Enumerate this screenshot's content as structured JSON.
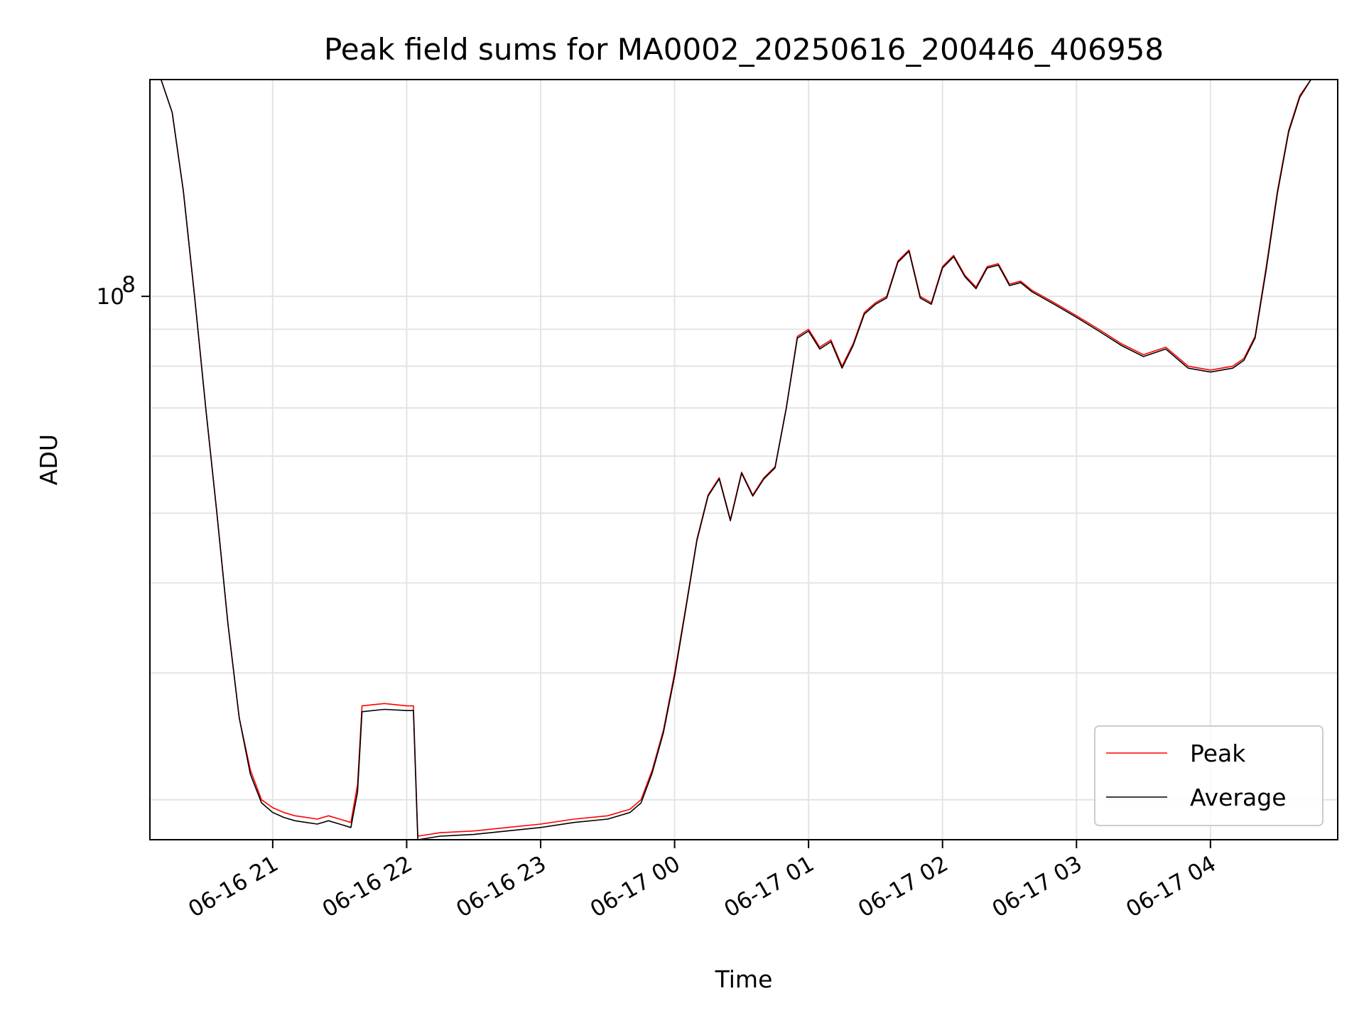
{
  "chart_data": {
    "type": "line",
    "title": "Peak field sums for MA0002_20250616_200446_406958",
    "xlabel": "Time",
    "ylabel": "ADU",
    "y_scale": "log",
    "ylim": [
      17600000.0,
      200000000.0
    ],
    "xlim": [
      "2025-06-16 20:05",
      "2025-06-17 04:57"
    ],
    "grid": true,
    "legend_position": "lower-right",
    "x_ticks": [
      "06-16 21",
      "06-16 22",
      "06-16 23",
      "06-17 00",
      "06-17 01",
      "06-17 02",
      "06-17 03",
      "06-17 04"
    ],
    "y_ticks": [
      {
        "label": "10",
        "exponent": "8",
        "value": 100000000.0
      }
    ],
    "series": [
      {
        "name": "Peak",
        "color": "#ff0000",
        "x": [
          "2025-06-16 20:05",
          "2025-06-16 20:10",
          "2025-06-16 20:15",
          "2025-06-16 20:20",
          "2025-06-16 20:25",
          "2025-06-16 20:30",
          "2025-06-16 20:35",
          "2025-06-16 20:40",
          "2025-06-16 20:45",
          "2025-06-16 20:50",
          "2025-06-16 20:55",
          "2025-06-16 21:00",
          "2025-06-16 21:05",
          "2025-06-16 21:10",
          "2025-06-16 21:15",
          "2025-06-16 21:20",
          "2025-06-16 21:25",
          "2025-06-16 21:30",
          "2025-06-16 21:35",
          "2025-06-16 21:38",
          "2025-06-16 21:40",
          "2025-06-16 21:50",
          "2025-06-16 22:00",
          "2025-06-16 22:03",
          "2025-06-16 22:05",
          "2025-06-16 22:15",
          "2025-06-16 22:30",
          "2025-06-16 22:45",
          "2025-06-16 23:00",
          "2025-06-16 23:15",
          "2025-06-16 23:30",
          "2025-06-16 23:40",
          "2025-06-16 23:45",
          "2025-06-16 23:50",
          "2025-06-16 23:55",
          "2025-06-17 00:00",
          "2025-06-17 00:05",
          "2025-06-17 00:10",
          "2025-06-17 00:15",
          "2025-06-17 00:20",
          "2025-06-17 00:25",
          "2025-06-17 00:30",
          "2025-06-17 00:35",
          "2025-06-17 00:40",
          "2025-06-17 00:45",
          "2025-06-17 00:50",
          "2025-06-17 00:55",
          "2025-06-17 01:00",
          "2025-06-17 01:05",
          "2025-06-17 01:10",
          "2025-06-17 01:15",
          "2025-06-17 01:20",
          "2025-06-17 01:25",
          "2025-06-17 01:30",
          "2025-06-17 01:35",
          "2025-06-17 01:40",
          "2025-06-17 01:45",
          "2025-06-17 01:50",
          "2025-06-17 01:55",
          "2025-06-17 02:00",
          "2025-06-17 02:05",
          "2025-06-17 02:10",
          "2025-06-17 02:15",
          "2025-06-17 02:20",
          "2025-06-17 02:25",
          "2025-06-17 02:30",
          "2025-06-17 02:35",
          "2025-06-17 02:40",
          "2025-06-17 02:45",
          "2025-06-17 02:50",
          "2025-06-17 03:00",
          "2025-06-17 03:10",
          "2025-06-17 03:20",
          "2025-06-17 03:30",
          "2025-06-17 03:40",
          "2025-06-17 03:50",
          "2025-06-17 04:00",
          "2025-06-17 04:10",
          "2025-06-17 04:15",
          "2025-06-17 04:20",
          "2025-06-17 04:25",
          "2025-06-17 04:30",
          "2025-06-17 04:35",
          "2025-06-17 04:40",
          "2025-06-17 04:45",
          "2025-06-17 04:50",
          "2025-06-17 04:57"
        ],
        "values": [
          200000000.0,
          200000000.0,
          180000000.0,
          140000000.0,
          100000000.0,
          70000000.0,
          50000000.0,
          35000000.0,
          26000000.0,
          22000000.0,
          20000000.0,
          19500000.0,
          19200000.0,
          19000000.0,
          18900000.0,
          18800000.0,
          19000000.0,
          18800000.0,
          18600000.0,
          21000000.0,
          27000000.0,
          27200000.0,
          27000000.0,
          27000000.0,
          17800000.0,
          18000000.0,
          18100000.0,
          18300000.0,
          18500000.0,
          18800000.0,
          19000000.0,
          19400000.0,
          20000000.0,
          22000000.0,
          25000000.0,
          30000000.0,
          37000000.0,
          46000000.0,
          53000000.0,
          56000000.0,
          49000000.0,
          57000000.0,
          53000000.0,
          56000000.0,
          58000000.0,
          70000000.0,
          88000000.0,
          90000000.0,
          85000000.0,
          87000000.0,
          80000000.0,
          86000000.0,
          95000000.0,
          98000000.0,
          100000000.0,
          112000000.0,
          116000000.0,
          100000000.0,
          98000000.0,
          110000000.0,
          114000000.0,
          107000000.0,
          103000000.0,
          110000000.0,
          111000000.0,
          104000000.0,
          105000000.0,
          102000000.0,
          100000000.0,
          98000000.0,
          94000000.0,
          90000000.0,
          86000000.0,
          83000000.0,
          85000000.0,
          80000000.0,
          79000000.0,
          80000000.0,
          82000000.0,
          88000000.0,
          110000000.0,
          140000000.0,
          170000000.0,
          190000000.0,
          200000000.0,
          200000000.0,
          200000000.0
        ]
      },
      {
        "name": "Average",
        "color": "#000000",
        "x": [
          "2025-06-16 20:05",
          "2025-06-16 20:10",
          "2025-06-16 20:15",
          "2025-06-16 20:20",
          "2025-06-16 20:25",
          "2025-06-16 20:30",
          "2025-06-16 20:35",
          "2025-06-16 20:40",
          "2025-06-16 20:45",
          "2025-06-16 20:50",
          "2025-06-16 20:55",
          "2025-06-16 21:00",
          "2025-06-16 21:05",
          "2025-06-16 21:10",
          "2025-06-16 21:15",
          "2025-06-16 21:20",
          "2025-06-16 21:25",
          "2025-06-16 21:30",
          "2025-06-16 21:35",
          "2025-06-16 21:38",
          "2025-06-16 21:40",
          "2025-06-16 21:50",
          "2025-06-16 22:00",
          "2025-06-16 22:03",
          "2025-06-16 22:05",
          "2025-06-16 22:15",
          "2025-06-16 22:30",
          "2025-06-16 22:45",
          "2025-06-16 23:00",
          "2025-06-16 23:15",
          "2025-06-16 23:30",
          "2025-06-16 23:40",
          "2025-06-16 23:45",
          "2025-06-16 23:50",
          "2025-06-16 23:55",
          "2025-06-17 00:00",
          "2025-06-17 00:05",
          "2025-06-17 00:10",
          "2025-06-17 00:15",
          "2025-06-17 00:20",
          "2025-06-17 00:25",
          "2025-06-17 00:30",
          "2025-06-17 00:35",
          "2025-06-17 00:40",
          "2025-06-17 00:45",
          "2025-06-17 00:50",
          "2025-06-17 00:55",
          "2025-06-17 01:00",
          "2025-06-17 01:05",
          "2025-06-17 01:10",
          "2025-06-17 01:15",
          "2025-06-17 01:20",
          "2025-06-17 01:25",
          "2025-06-17 01:30",
          "2025-06-17 01:35",
          "2025-06-17 01:40",
          "2025-06-17 01:45",
          "2025-06-17 01:50",
          "2025-06-17 01:55",
          "2025-06-17 02:00",
          "2025-06-17 02:05",
          "2025-06-17 02:10",
          "2025-06-17 02:15",
          "2025-06-17 02:20",
          "2025-06-17 02:25",
          "2025-06-17 02:30",
          "2025-06-17 02:35",
          "2025-06-17 02:40",
          "2025-06-17 02:45",
          "2025-06-17 02:50",
          "2025-06-17 03:00",
          "2025-06-17 03:10",
          "2025-06-17 03:20",
          "2025-06-17 03:30",
          "2025-06-17 03:40",
          "2025-06-17 03:50",
          "2025-06-17 04:00",
          "2025-06-17 04:10",
          "2025-06-17 04:15",
          "2025-06-17 04:20",
          "2025-06-17 04:25",
          "2025-06-17 04:30",
          "2025-06-17 04:35",
          "2025-06-17 04:40",
          "2025-06-17 04:45",
          "2025-06-17 04:50",
          "2025-06-17 04:57"
        ],
        "values": [
          200000000.0,
          200000000.0,
          180000000.0,
          140000000.0,
          100000000.0,
          70000000.0,
          50000000.0,
          35000000.0,
          26000000.0,
          21700000.0,
          19800000.0,
          19200000.0,
          18900000.0,
          18700000.0,
          18600000.0,
          18500000.0,
          18700000.0,
          18500000.0,
          18300000.0,
          20500000.0,
          26500000.0,
          26700000.0,
          26600000.0,
          26600000.0,
          17600000.0,
          17800000.0,
          17900000.0,
          18100000.0,
          18300000.0,
          18600000.0,
          18800000.0,
          19200000.0,
          19800000.0,
          21800000.0,
          24800000.0,
          29700000.0,
          36800000.0,
          45800000.0,
          52800000.0,
          55800000.0,
          48800000.0,
          56800000.0,
          52800000.0,
          55800000.0,
          57800000.0,
          69800000.0,
          87500000.0,
          89500000.0,
          84500000.0,
          86500000.0,
          79500000.0,
          85500000.0,
          94500000.0,
          97500000.0,
          99500000.0,
          111500000.0,
          115500000.0,
          99500000.0,
          97500000.0,
          109500000.0,
          113500000.0,
          106500000.0,
          102500000.0,
          109500000.0,
          110500000.0,
          103500000.0,
          104500000.0,
          101500000.0,
          99500000.0,
          97500000.0,
          93500000.0,
          89500000.0,
          85500000.0,
          82500000.0,
          84500000.0,
          79500000.0,
          78500000.0,
          79500000.0,
          81500000.0,
          87500000.0,
          109000000.0,
          139000000.0,
          169000000.0,
          189000000.0,
          200000000.0,
          200000000.0,
          200000000.0
        ]
      }
    ],
    "legend": [
      {
        "name": "Peak",
        "color": "#ff0000"
      },
      {
        "name": "Average",
        "color": "#000000"
      }
    ]
  }
}
